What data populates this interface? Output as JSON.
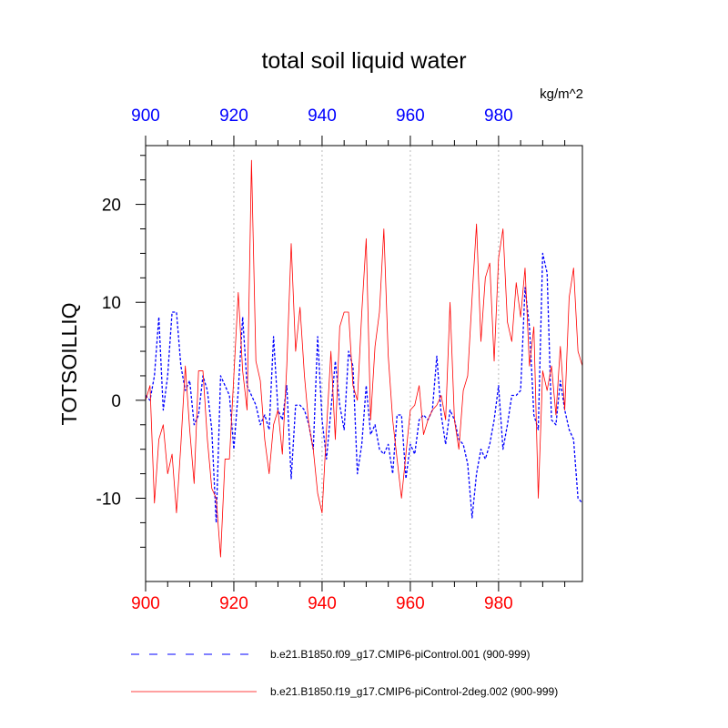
{
  "chart_data": {
    "type": "line",
    "title": "total soil liquid water",
    "units": "kg/m^2",
    "xlabel": "",
    "ylabel": "TOTSOILLIQ",
    "xlim": [
      900,
      999
    ],
    "ylim": [
      -18.5,
      26
    ],
    "bottom_ticks": [
      900,
      920,
      940,
      960,
      980
    ],
    "top_ticks": [
      900,
      920,
      940,
      960,
      980
    ],
    "y_ticks": [
      -10,
      0,
      10,
      20
    ],
    "y_tick_labels": [
      "-10",
      "0",
      "10",
      "20"
    ],
    "bottom_tick_color": "#ff0000",
    "top_tick_color": "#0000ff",
    "gridlines_x": [
      920,
      940,
      960,
      980
    ],
    "series": [
      {
        "name": "b.e21.B1850.f09_g17.CMIP6-piControl.001 (900-999)",
        "color": "#0000ff",
        "style": "dashed",
        "x": [
          900,
          901,
          902,
          903,
          904,
          905,
          906,
          907,
          908,
          909,
          910,
          911,
          912,
          913,
          914,
          915,
          916,
          917,
          918,
          919,
          920,
          921,
          922,
          923,
          924,
          925,
          926,
          927,
          928,
          929,
          930,
          931,
          932,
          933,
          934,
          935,
          936,
          937,
          938,
          939,
          940,
          941,
          942,
          943,
          944,
          945,
          946,
          947,
          948,
          949,
          950,
          951,
          952,
          953,
          954,
          955,
          956,
          957,
          958,
          959,
          960,
          961,
          962,
          963,
          964,
          965,
          966,
          967,
          968,
          969,
          970,
          971,
          972,
          973,
          974,
          975,
          976,
          977,
          978,
          979,
          980,
          981,
          982,
          983,
          984,
          985,
          986,
          987,
          988,
          989,
          990,
          991,
          992,
          993,
          994,
          995,
          996,
          997,
          998,
          999
        ],
        "values": [
          0.5,
          0.0,
          2.5,
          8.5,
          -1.0,
          2.5,
          9.0,
          9.0,
          3.5,
          1.0,
          2.0,
          -2.5,
          -1.5,
          2.5,
          1.0,
          -3.0,
          -12.5,
          2.5,
          1.5,
          0.5,
          -5.0,
          1.0,
          8.5,
          1.5,
          0.5,
          -0.5,
          -2.5,
          -1.5,
          -3.0,
          6.5,
          -1.0,
          -2.0,
          1.5,
          -8.0,
          -0.5,
          -0.5,
          -1.0,
          -2.5,
          -5.0,
          6.5,
          -2.0,
          -6.0,
          -1.0,
          4.0,
          -0.5,
          -3.0,
          5.0,
          3.5,
          -7.5,
          -4.5,
          1.5,
          -3.5,
          -2.5,
          -5.0,
          -5.5,
          -4.5,
          -7.5,
          -1.5,
          -1.5,
          -8.0,
          -4.5,
          -5.5,
          -2.0,
          -1.5,
          -2.0,
          -1.0,
          4.5,
          -1.5,
          -4.5,
          -1.0,
          -2.0,
          -4.0,
          -4.5,
          -6.5,
          -12.0,
          -7.5,
          -5.0,
          -6.0,
          -4.5,
          -2.0,
          1.5,
          -5.0,
          -2.5,
          0.5,
          0.5,
          1.0,
          11.5,
          7.5,
          -1.5,
          -3.0,
          15.0,
          13.0,
          -2.0,
          -2.5,
          2.0,
          -1.0,
          -3.0,
          -4.0,
          -10.0,
          -10.5
        ]
      },
      {
        "name": "b.e21.B1850.f19_g17.CMIP6-piControl-2deg.002 (900-999)",
        "color": "#ff0000",
        "style": "solid",
        "x": [
          900,
          901,
          902,
          903,
          904,
          905,
          906,
          907,
          908,
          909,
          910,
          911,
          912,
          913,
          914,
          915,
          916,
          917,
          918,
          919,
          920,
          921,
          922,
          923,
          924,
          925,
          926,
          927,
          928,
          929,
          930,
          931,
          932,
          933,
          934,
          935,
          936,
          937,
          938,
          939,
          940,
          941,
          942,
          943,
          944,
          945,
          946,
          947,
          948,
          949,
          950,
          951,
          952,
          953,
          954,
          955,
          956,
          957,
          958,
          959,
          960,
          961,
          962,
          963,
          964,
          965,
          966,
          967,
          968,
          969,
          970,
          971,
          972,
          973,
          974,
          975,
          976,
          977,
          978,
          979,
          980,
          981,
          982,
          983,
          984,
          985,
          986,
          987,
          988,
          989,
          990,
          991,
          992,
          993,
          994,
          995,
          996,
          997,
          998,
          999
        ],
        "values": [
          0.0,
          1.5,
          -10.5,
          -4.0,
          -2.5,
          -7.5,
          -5.5,
          -11.5,
          -4.5,
          3.5,
          -3.0,
          -8.5,
          3.0,
          3.0,
          -4.0,
          -9.0,
          -10.0,
          -16.0,
          -6.0,
          -6.0,
          2.5,
          11.0,
          3.0,
          -1.0,
          24.5,
          4.0,
          2.0,
          -4.0,
          -7.5,
          -2.5,
          -1.0,
          -5.5,
          3.5,
          16.0,
          5.0,
          9.5,
          2.5,
          -2.5,
          -5.0,
          -9.5,
          -11.5,
          -3.0,
          5.0,
          -4.0,
          7.5,
          9.0,
          9.0,
          1.5,
          0.0,
          9.0,
          16.5,
          -2.0,
          5.5,
          9.0,
          17.5,
          4.5,
          -2.0,
          -6.0,
          -10.0,
          -5.5,
          -1.0,
          -0.5,
          1.5,
          -3.5,
          -2.0,
          -1.0,
          -0.5,
          0.5,
          -2.0,
          10.0,
          -2.0,
          -5.0,
          1.0,
          2.5,
          10.5,
          18.0,
          6.0,
          12.5,
          14.0,
          4.0,
          14.5,
          17.5,
          8.0,
          6.0,
          12.0,
          8.5,
          13.5,
          3.5,
          7.5,
          -10.0,
          3.0,
          1.0,
          3.5,
          -1.5,
          5.5,
          -1.0,
          10.5,
          13.5,
          5.0,
          3.5
        ]
      }
    ],
    "legend": [
      {
        "label": "b.e21.B1850.f09_g17.CMIP6-piControl.001 (900-999)",
        "color": "#0000ff",
        "style": "dashed"
      },
      {
        "label": "b.e21.B1850.f19_g17.CMIP6-piControl-2deg.002 (900-999)",
        "color": "#ff0000",
        "style": "solid"
      }
    ],
    "legend_position": "bottom"
  }
}
